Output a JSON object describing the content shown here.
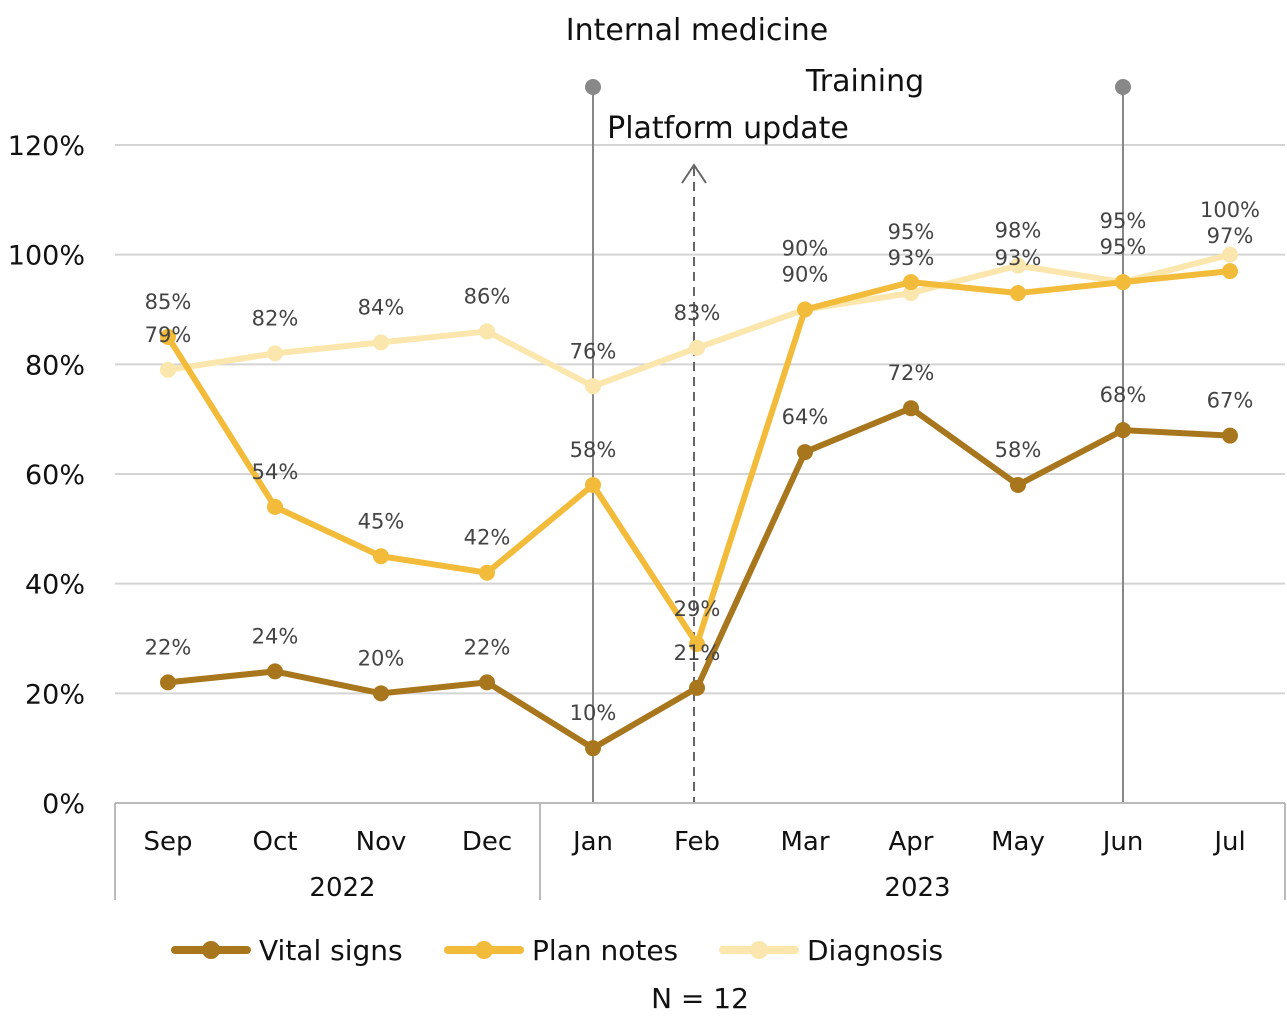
{
  "chart_data": {
    "type": "line",
    "categories": [
      "Sep",
      "Oct",
      "Nov",
      "Dec",
      "Jan",
      "Feb",
      "Mar",
      "Apr",
      "May",
      "Jun",
      "Jul"
    ],
    "category_groups": [
      {
        "label": "2022",
        "categories": [
          "Sep",
          "Oct",
          "Nov",
          "Dec"
        ]
      },
      {
        "label": "2023",
        "categories": [
          "Jan",
          "Feb",
          "Mar",
          "Apr",
          "May",
          "Jun",
          "Jul"
        ]
      }
    ],
    "series": [
      {
        "name": "Vital signs",
        "color": "#a8761c",
        "values": [
          22,
          24,
          20,
          22,
          10,
          21,
          64,
          72,
          58,
          68,
          67
        ]
      },
      {
        "name": "Plan notes",
        "color": "#f3bb3a",
        "values": [
          85,
          54,
          45,
          42,
          58,
          29,
          90,
          95,
          93,
          95,
          97
        ]
      },
      {
        "name": "Diagnosis",
        "color": "#fbe6ad",
        "values": [
          79,
          82,
          84,
          86,
          76,
          83,
          90,
          93,
          98,
          95,
          100
        ]
      }
    ],
    "ylim": [
      0,
      120
    ],
    "yticks": [
      "0%",
      "20%",
      "40%",
      "60%",
      "80%",
      "100%",
      "120%"
    ],
    "ytick_values": [
      0,
      20,
      40,
      60,
      80,
      100,
      120
    ],
    "grid": true,
    "value_suffix": "%",
    "legend_position": "bottom",
    "annotations": [
      {
        "label": "Internal medicine",
        "at": "Jan",
        "style": "solid-line"
      },
      {
        "label": "Platform update",
        "at": "Feb",
        "style": "dashed-arrow"
      },
      {
        "label": "Training",
        "at": "Jun",
        "style": "solid-line"
      }
    ],
    "note": "N = 12"
  }
}
